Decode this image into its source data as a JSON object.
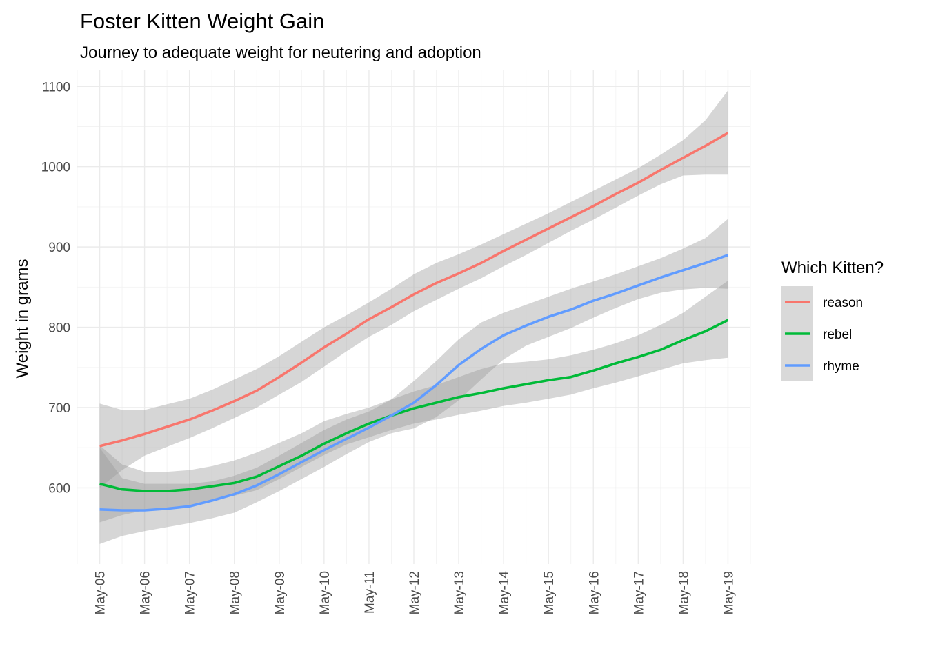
{
  "chart_data": {
    "type": "line",
    "title": "Foster Kitten Weight Gain",
    "subtitle": "Journey to adequate weight for neutering and adoption",
    "xlabel": "",
    "ylabel": "Weight in grams",
    "x_tick_labels": [
      "May-05",
      "May-06",
      "May-07",
      "May-08",
      "May-09",
      "May-10",
      "May-11",
      "May-12",
      "May-13",
      "May-14",
      "May-15",
      "May-16",
      "May-17",
      "May-18",
      "May-19"
    ],
    "x": [
      5,
      5.5,
      6,
      6.5,
      7,
      7.5,
      8,
      8.5,
      9,
      9.5,
      10,
      10.5,
      11,
      11.5,
      12,
      12.5,
      13,
      13.5,
      14,
      14.5,
      15,
      15.5,
      16,
      16.5,
      17,
      17.5,
      18,
      18.5,
      19
    ],
    "xlim": [
      4.5,
      19.5
    ],
    "y_ticks": [
      600,
      700,
      800,
      900,
      1000,
      1100
    ],
    "ylim": [
      505,
      1120
    ],
    "grid": true,
    "legend_title": "Which Kitten?",
    "legend_position": "right",
    "series": [
      {
        "name": "reason",
        "color": "#F8766D",
        "values": [
          652,
          659,
          667,
          676,
          685,
          696,
          708,
          721,
          738,
          756,
          775,
          792,
          810,
          825,
          841,
          855,
          867,
          880,
          895,
          909,
          923,
          937,
          951,
          966,
          980,
          996,
          1011,
          1026,
          1042
        ],
        "ci_low": [
          600,
          622,
          640,
          651,
          662,
          674,
          687,
          700,
          716,
          732,
          751,
          770,
          788,
          803,
          820,
          834,
          848,
          861,
          876,
          890,
          905,
          920,
          934,
          949,
          964,
          978,
          989,
          990,
          990
        ],
        "ci_high": [
          705,
          697,
          697,
          704,
          711,
          722,
          735,
          748,
          764,
          782,
          800,
          815,
          831,
          848,
          866,
          880,
          891,
          903,
          916,
          929,
          942,
          956,
          970,
          984,
          998,
          1015,
          1033,
          1058,
          1095
        ]
      },
      {
        "name": "rebel",
        "color": "#00BA38",
        "values": [
          605,
          598,
          596,
          596,
          598,
          602,
          606,
          614,
          627,
          640,
          655,
          668,
          680,
          690,
          699,
          706,
          713,
          718,
          724,
          729,
          734,
          738,
          746,
          755,
          763,
          772,
          784,
          795,
          809
        ],
        "ci_low": [
          557,
          566,
          572,
          573,
          577,
          584,
          590,
          597,
          611,
          626,
          641,
          654,
          663,
          672,
          680,
          685,
          691,
          696,
          702,
          706,
          711,
          716,
          724,
          731,
          739,
          747,
          755,
          759,
          762
        ],
        "ci_high": [
          653,
          629,
          620,
          620,
          622,
          627,
          634,
          644,
          656,
          668,
          683,
          692,
          700,
          710,
          720,
          728,
          738,
          748,
          755,
          757,
          760,
          765,
          772,
          780,
          790,
          803,
          818,
          838,
          858
        ]
      },
      {
        "name": "rhyme",
        "color": "#619CFF",
        "values": [
          573,
          572,
          572,
          574,
          577,
          584,
          592,
          603,
          617,
          632,
          647,
          661,
          675,
          690,
          706,
          728,
          753,
          773,
          790,
          802,
          813,
          822,
          833,
          842,
          852,
          862,
          871,
          880,
          890
        ],
        "ci_low": [
          530,
          540,
          546,
          551,
          556,
          562,
          569,
          582,
          596,
          611,
          626,
          642,
          657,
          668,
          674,
          688,
          709,
          735,
          760,
          777,
          788,
          799,
          812,
          824,
          835,
          843,
          847,
          849,
          848
        ],
        "ci_high": [
          650,
          612,
          605,
          605,
          605,
          608,
          615,
          625,
          640,
          656,
          672,
          685,
          695,
          710,
          733,
          758,
          785,
          806,
          818,
          828,
          838,
          848,
          857,
          866,
          876,
          886,
          898,
          911,
          935
        ]
      }
    ]
  }
}
